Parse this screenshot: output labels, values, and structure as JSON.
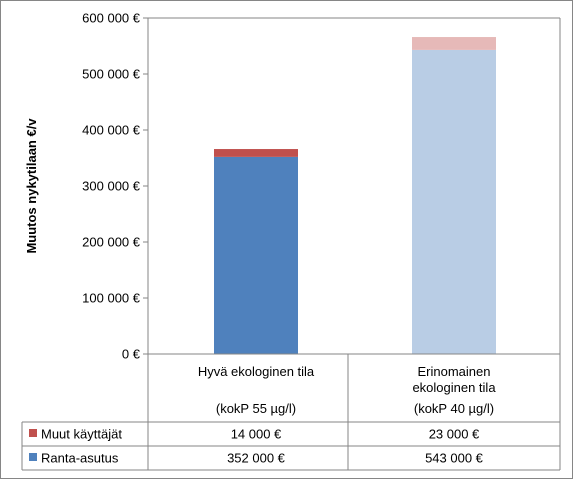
{
  "chart_data": {
    "type": "bar",
    "stacked": true,
    "ylabel": "Muutos nykytilaan €/v",
    "ylim": [
      0,
      600000
    ],
    "ytick_values": [
      0,
      100000,
      200000,
      300000,
      400000,
      500000,
      600000
    ],
    "ytick_labels": [
      "0 €",
      "100 000 €",
      "200 000 €",
      "300 000 €",
      "400 000 €",
      "500 000 €",
      "600 000 €"
    ],
    "grid": false,
    "categories": [
      {
        "lines": [
          "Hyvä ekologinen tila",
          "",
          "(kokP 55 µg/l)"
        ]
      },
      {
        "lines": [
          "Erinomainen",
          "ekologinen tila",
          "(kokP 40 µg/l)"
        ]
      }
    ],
    "series": [
      {
        "name": "Ranta-asutus",
        "values": [
          352000,
          543000
        ],
        "value_labels": [
          "352 000 €",
          "543 000 €"
        ],
        "colors": [
          "#4f81bd",
          "#b9cde5"
        ],
        "legend_color": "#4f81bd"
      },
      {
        "name": "Muut käyttäjät",
        "values": [
          14000,
          23000
        ],
        "value_labels": [
          "14 000 €",
          "23 000 €"
        ],
        "colors": [
          "#c0504d",
          "#e6b9b8"
        ],
        "legend_color": "#c0504d"
      }
    ],
    "data_table": true
  }
}
